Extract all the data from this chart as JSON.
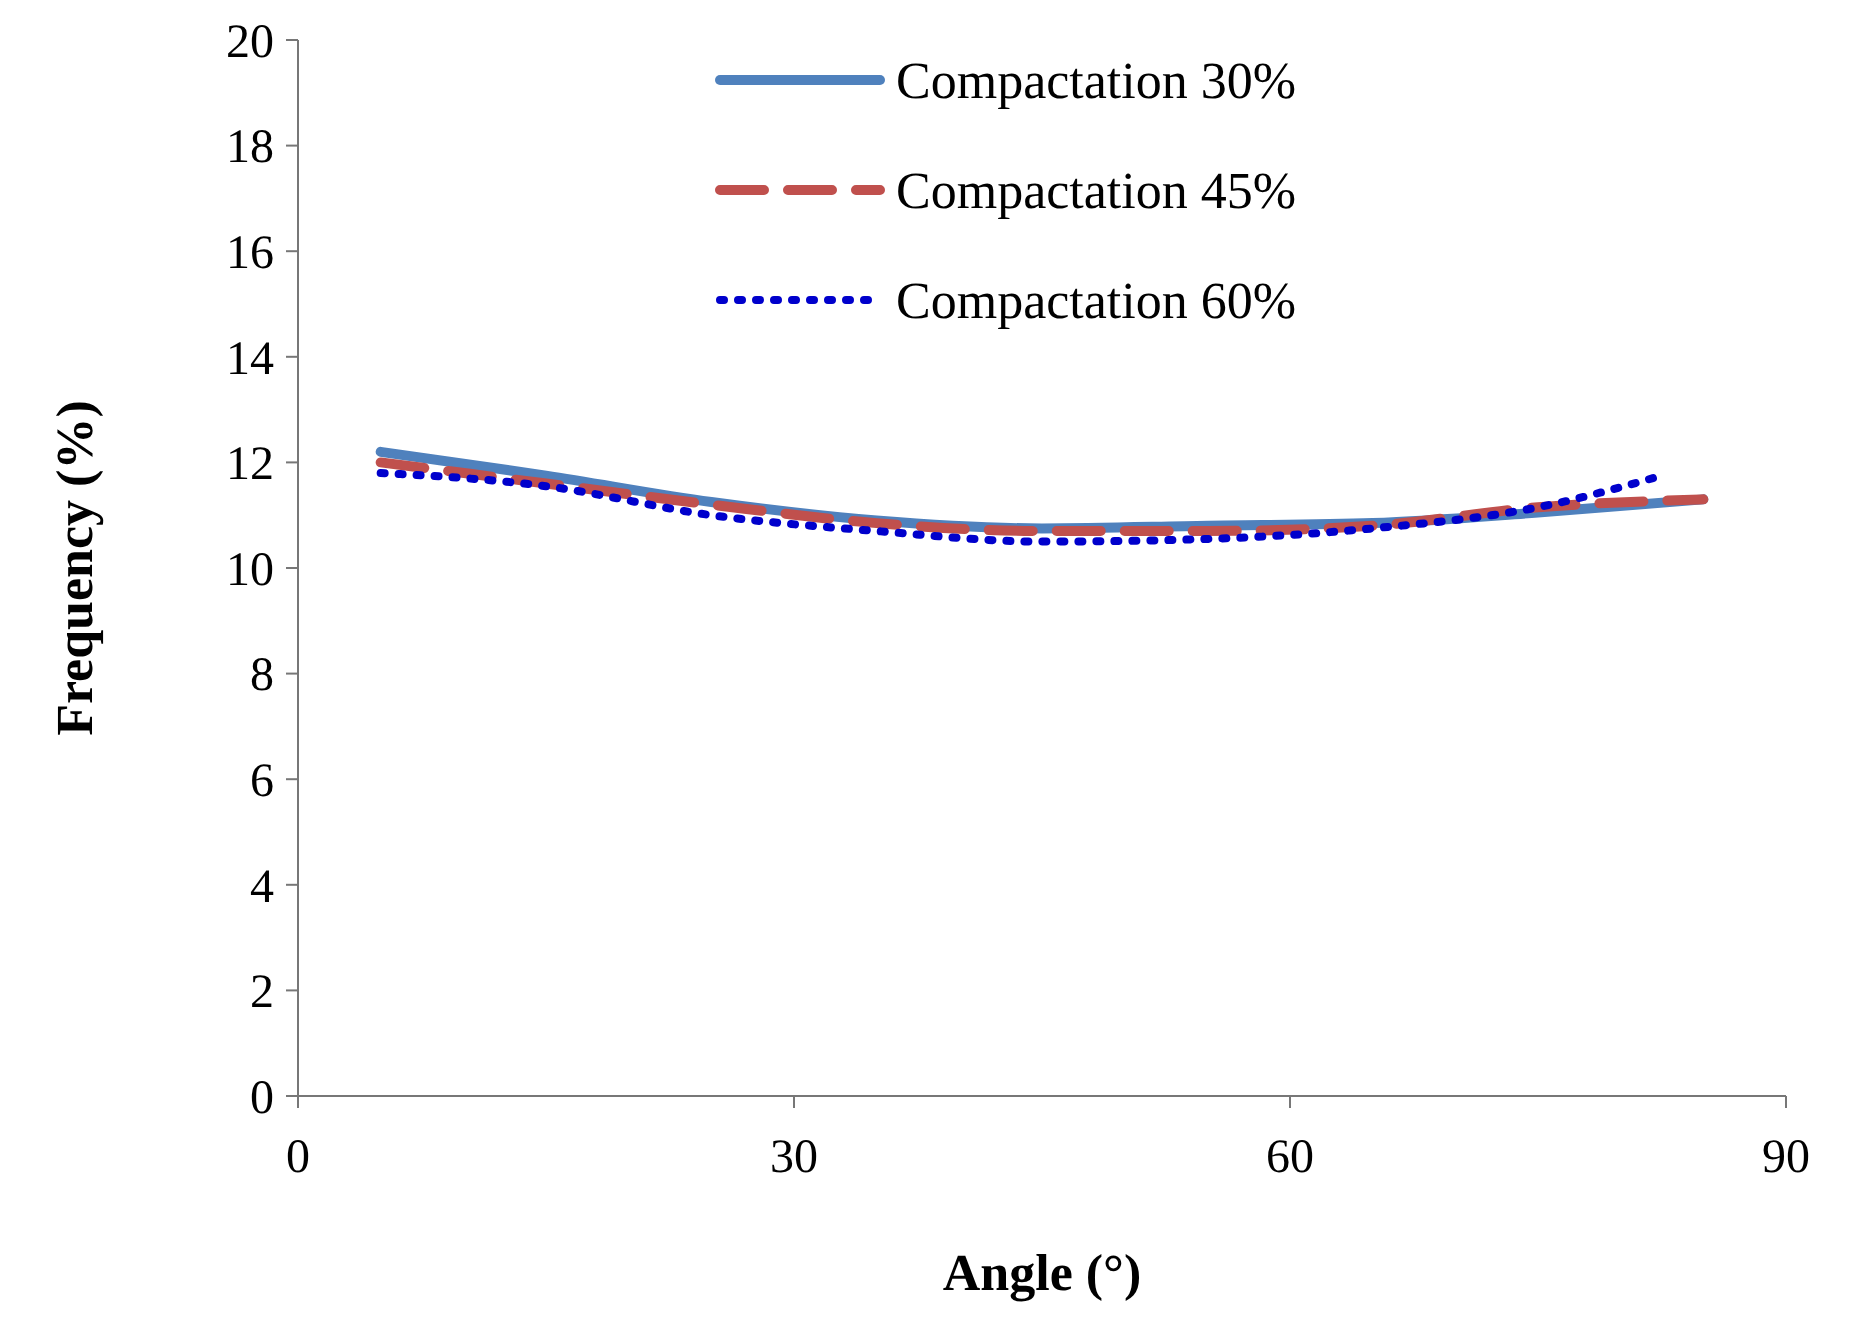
{
  "chart_data": {
    "type": "line",
    "xlabel": "Angle (°)",
    "ylabel": "Frequency (%)",
    "xlim": [
      0,
      90
    ],
    "xticks": [
      0,
      30,
      60,
      90
    ],
    "ylim": [
      0,
      20
    ],
    "yticks": [
      0,
      2,
      4,
      6,
      8,
      10,
      12,
      14,
      16,
      18,
      20
    ],
    "grid": false,
    "legend": "top",
    "x": [
      5,
      15,
      25,
      35,
      45,
      55,
      65,
      75,
      85
    ],
    "series": [
      {
        "name": "Compactation 30%",
        "color": "#4f81bd",
        "line_style": "solid",
        "values": [
          12.2,
          11.75,
          11.25,
          10.9,
          10.75,
          10.8,
          10.85,
          11.05,
          11.3
        ]
      },
      {
        "name": "Compactation 45%",
        "color": "#c0504d",
        "line_style": "dashed",
        "values": [
          12.0,
          11.6,
          11.2,
          10.85,
          10.7,
          10.7,
          10.8,
          11.15,
          11.3
        ]
      },
      {
        "name": "Compactation 60%",
        "color": "#0000cc",
        "line_style": "dotted",
        "x": [
          5,
          15,
          25,
          35,
          45,
          55,
          65,
          75,
          82.5
        ],
        "values": [
          11.8,
          11.55,
          11.0,
          10.7,
          10.5,
          10.55,
          10.75,
          11.15,
          11.75
        ]
      }
    ]
  }
}
